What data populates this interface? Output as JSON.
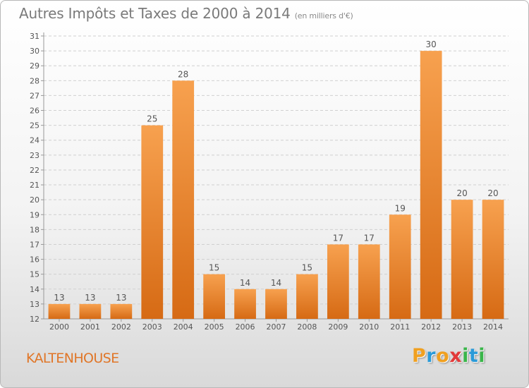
{
  "header": {
    "title": "Autres Impôts et Taxes de 2000 à 2014",
    "unit": "(en milliers d'€)"
  },
  "footer": {
    "city": "KALTENHOUSE",
    "brand_letters": [
      "P",
      "r",
      "o",
      "x",
      "i",
      "t",
      "i"
    ],
    "brand_colors": [
      "#f0a020",
      "#2a9ad8",
      "#f0a020",
      "#e23a3a",
      "#3ab54a",
      "#2a9ad8",
      "#3ab54a"
    ]
  },
  "chart_data": {
    "type": "bar",
    "title": "Autres Impôts et Taxes de 2000 à 2014",
    "categories": [
      "2000",
      "2001",
      "2002",
      "2003",
      "2004",
      "2005",
      "2006",
      "2007",
      "2008",
      "2009",
      "2010",
      "2011",
      "2012",
      "2013",
      "2014"
    ],
    "values": [
      13,
      13,
      13,
      25,
      28,
      15,
      14,
      14,
      15,
      17,
      17,
      19,
      30,
      20,
      20
    ],
    "ylim": [
      12,
      31
    ],
    "yticks": [
      12,
      13,
      14,
      15,
      16,
      17,
      18,
      19,
      20,
      21,
      22,
      23,
      24,
      25,
      26,
      27,
      28,
      29,
      30,
      31
    ],
    "grid": true,
    "bar_color_top": "#f7a14f",
    "bar_color_bottom": "#d66a14"
  }
}
